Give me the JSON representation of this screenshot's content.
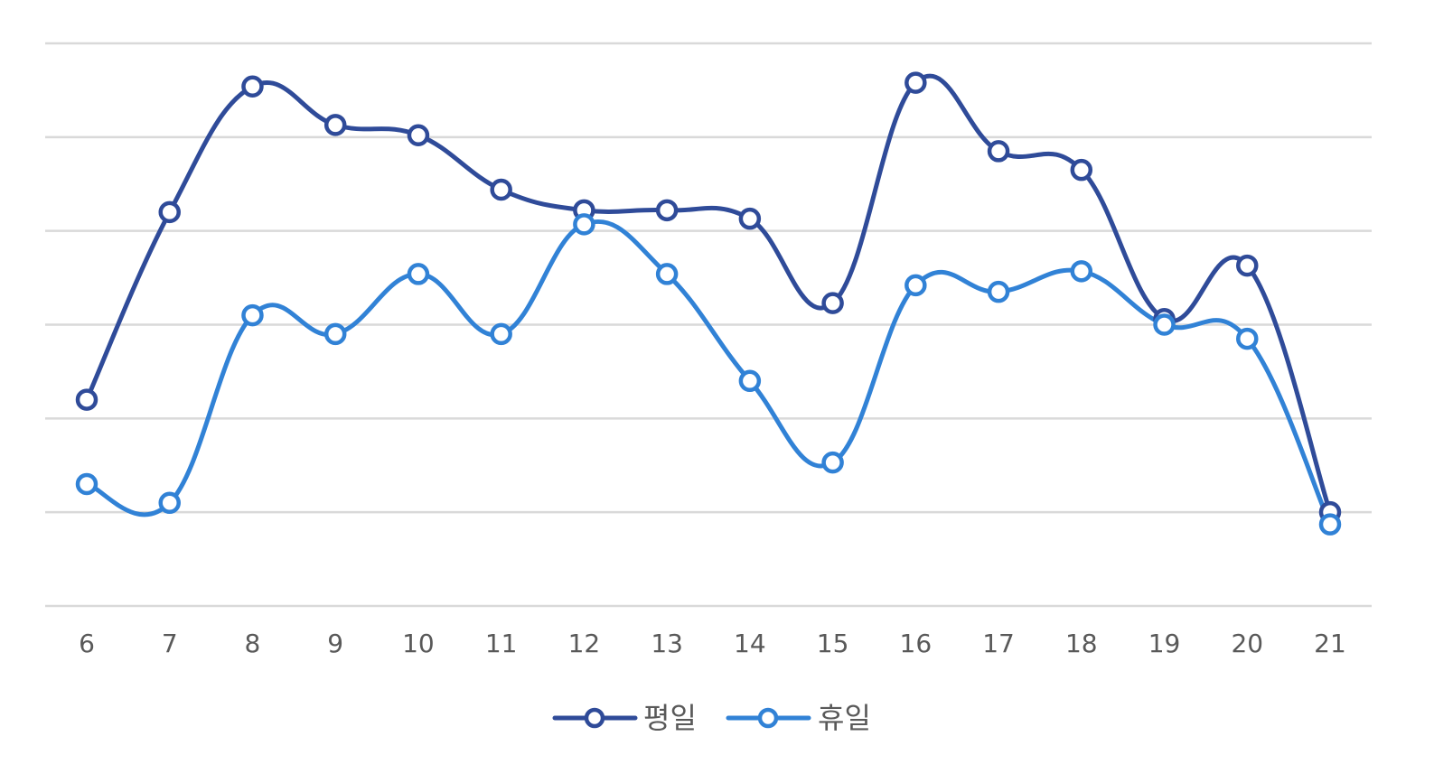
{
  "chart_data": {
    "type": "line",
    "smooth": true,
    "title": "",
    "xlabel": "",
    "ylabel": "",
    "x": [
      "6",
      "7",
      "8",
      "9",
      "10",
      "11",
      "12",
      "13",
      "14",
      "15",
      "16",
      "17",
      "18",
      "19",
      "20",
      "21"
    ],
    "ylim": [
      0,
      6
    ],
    "y_gridlines": 7,
    "y_tick_labels_shown": false,
    "grid": true,
    "legend_position": "bottom",
    "series": [
      {
        "name": "평일",
        "color": "#2f4b99",
        "values": [
          2.2,
          4.2,
          5.54,
          5.13,
          5.02,
          4.44,
          4.22,
          4.22,
          4.13,
          3.23,
          5.58,
          4.85,
          4.65,
          3.06,
          3.63,
          1.0
        ]
      },
      {
        "name": "휴일",
        "color": "#3182d6",
        "values": [
          1.3,
          1.1,
          3.1,
          2.9,
          3.54,
          2.9,
          4.07,
          3.54,
          2.4,
          1.53,
          3.42,
          3.35,
          3.57,
          3.0,
          2.85,
          0.87
        ]
      }
    ]
  }
}
